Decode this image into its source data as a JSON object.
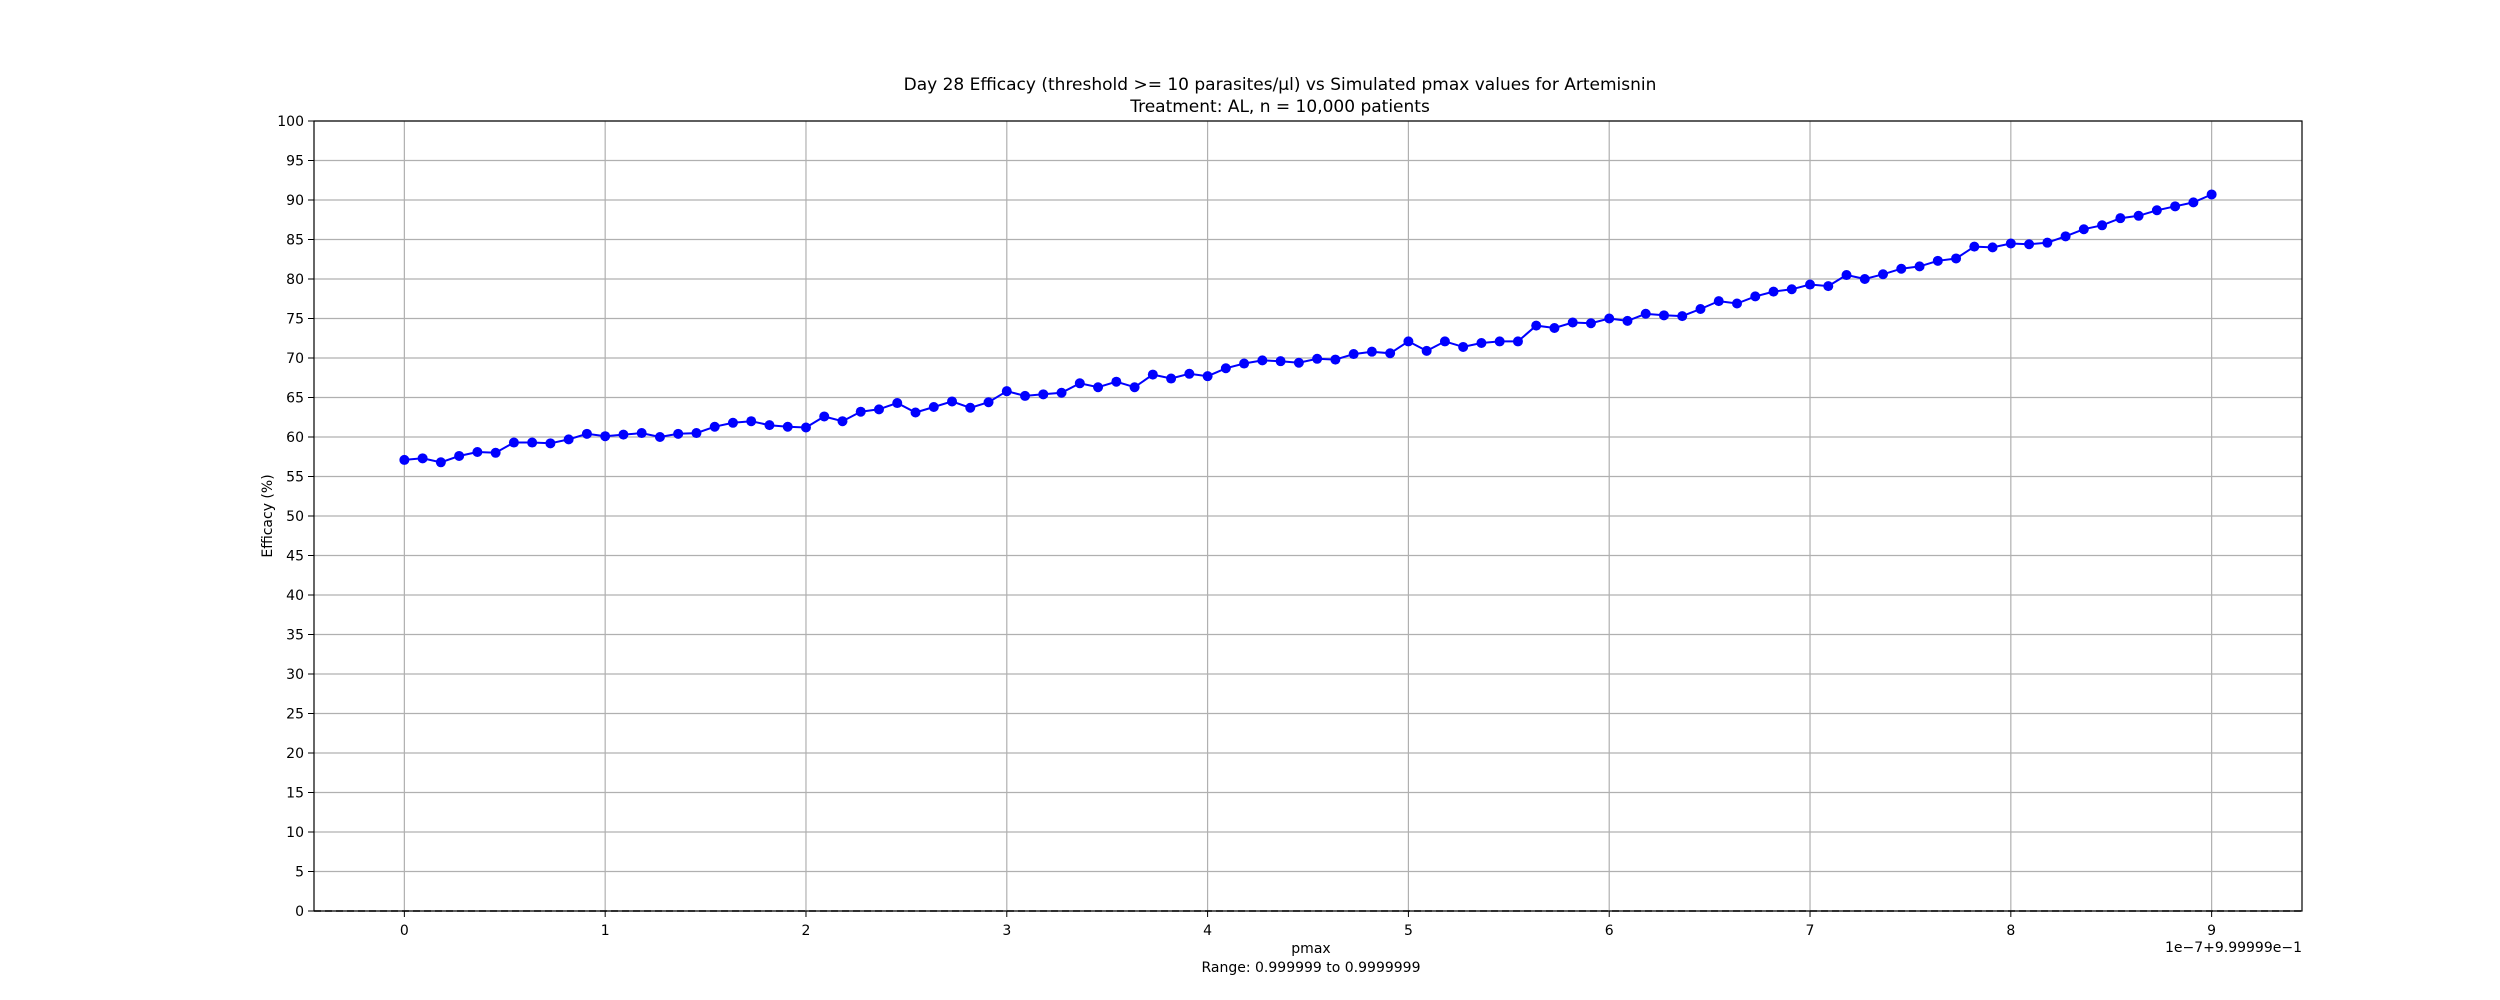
{
  "chart_data": {
    "type": "line",
    "title": "Day 28 Efficacy (threshold >= 10 parasites/µl) vs Simulated pmax values for Artemisnin",
    "subtitle": "Treatment: AL, n = 10,000 patients",
    "xlabel": "pmax",
    "xlabel_note": "Range: 0.999999 to 0.9999999",
    "ylabel": "Efficacy (%)",
    "offset_text": "1e−7+9.99999e−1",
    "xlim": [
      -0.45,
      9.45
    ],
    "ylim": [
      0,
      100
    ],
    "xticks": [
      0,
      1,
      2,
      3,
      4,
      5,
      6,
      7,
      8,
      9
    ],
    "xtick_labels": [
      "0",
      "1",
      "2",
      "3",
      "4",
      "5",
      "6",
      "7",
      "8",
      "9"
    ],
    "yticks": [
      0,
      5,
      10,
      15,
      20,
      25,
      30,
      35,
      40,
      45,
      50,
      55,
      60,
      65,
      70,
      75,
      80,
      85,
      90,
      95,
      100
    ],
    "ytick_labels": [
      "0",
      "5",
      "10",
      "15",
      "20",
      "25",
      "30",
      "35",
      "40",
      "45",
      "50",
      "55",
      "60",
      "65",
      "70",
      "75",
      "80",
      "85",
      "90",
      "95",
      "100"
    ],
    "grid": true,
    "reference_line": {
      "y": 0,
      "style": "dashed",
      "color": "#000000"
    },
    "series": [
      {
        "color": "#0000ff",
        "marker": "circle",
        "x": [
          0,
          0.0909,
          0.1818,
          0.2727,
          0.3636,
          0.4545,
          0.5455,
          0.6364,
          0.7273,
          0.8182,
          0.9091,
          1.0,
          1.0909,
          1.1818,
          1.2727,
          1.3636,
          1.4545,
          1.5455,
          1.6364,
          1.7273,
          1.8182,
          1.9091,
          2.0,
          2.0909,
          2.1818,
          2.2727,
          2.3636,
          2.4545,
          2.5455,
          2.6364,
          2.7273,
          2.8182,
          2.9091,
          3.0,
          3.0909,
          3.1818,
          3.2727,
          3.3636,
          3.4545,
          3.5455,
          3.6364,
          3.7273,
          3.8182,
          3.9091,
          4.0,
          4.0909,
          4.1818,
          4.2727,
          4.3636,
          4.4545,
          4.5455,
          4.6364,
          4.7273,
          4.8182,
          4.9091,
          5.0,
          5.0909,
          5.1818,
          5.2727,
          5.3636,
          5.4545,
          5.5455,
          5.6364,
          5.7273,
          5.8182,
          5.9091,
          6.0,
          6.0909,
          6.1818,
          6.2727,
          6.3636,
          6.4545,
          6.5455,
          6.6364,
          6.7273,
          6.8182,
          6.9091,
          7.0,
          7.0909,
          7.1818,
          7.2727,
          7.3636,
          7.4545,
          7.5455,
          7.6364,
          7.7273,
          7.8182,
          7.9091,
          8.0,
          8.0909,
          8.1818,
          8.2727,
          8.3636,
          8.4545,
          8.5455,
          8.6364,
          8.7273,
          8.8182,
          8.9091,
          9.0
        ],
        "y": [
          57.1,
          57.3,
          56.8,
          57.6,
          58.1,
          58.0,
          59.3,
          59.3,
          59.2,
          59.7,
          60.4,
          60.1,
          60.3,
          60.5,
          60.0,
          60.4,
          60.5,
          61.3,
          61.8,
          62.0,
          61.5,
          61.3,
          61.2,
          62.6,
          62.0,
          63.2,
          63.5,
          64.3,
          63.1,
          63.8,
          64.5,
          63.7,
          64.4,
          65.8,
          65.2,
          65.4,
          65.6,
          66.8,
          66.3,
          67.0,
          66.3,
          67.9,
          67.4,
          68.0,
          67.7,
          68.7,
          69.3,
          69.7,
          69.6,
          69.4,
          69.9,
          69.8,
          70.5,
          70.8,
          70.6,
          72.1,
          70.9,
          72.1,
          71.4,
          71.9,
          72.1,
          72.1,
          74.1,
          73.8,
          74.5,
          74.4,
          75.0,
          74.7,
          75.6,
          75.4,
          75.3,
          76.2,
          77.2,
          76.9,
          77.8,
          78.4,
          78.7,
          79.3,
          79.1,
          80.5,
          80.0,
          80.6,
          81.3,
          81.6,
          82.3,
          82.6,
          84.1,
          84.0,
          84.5,
          84.4,
          84.6,
          85.4,
          86.3,
          86.8,
          87.7,
          88.0,
          88.7,
          89.2,
          89.7,
          90.7
        ]
      }
    ]
  }
}
